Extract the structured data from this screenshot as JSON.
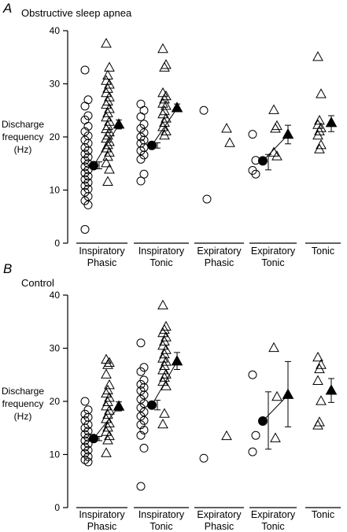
{
  "chart_data": [
    {
      "type": "scatter",
      "panel_letter": "A",
      "title": "Obstructive sleep apnea",
      "ylabel_lines": [
        "Discharge",
        "frequency",
        "(Hz)"
      ],
      "ylim": [
        0,
        40
      ],
      "yticks": [
        0,
        10,
        20,
        30,
        40
      ],
      "categories": [
        {
          "lines": [
            "Inspiratory",
            "Phasic"
          ]
        },
        {
          "lines": [
            "Inspiratory",
            "Tonic"
          ]
        },
        {
          "lines": [
            "Expiratory",
            "Phasic"
          ]
        },
        {
          "lines": [
            "Expiratory",
            "Tonic"
          ]
        },
        {
          "lines": [
            "Tonic"
          ]
        }
      ],
      "groups": [
        {
          "category": 0,
          "circles": [
            32.6,
            27.0,
            25.8,
            24.0,
            23.2,
            22.0,
            21.0,
            20.2,
            19.4,
            18.8,
            18.0,
            17.4,
            16.8,
            16.2,
            15.6,
            15.0,
            14.4,
            13.8,
            13.2,
            12.6,
            12.0,
            11.4,
            10.8,
            10.2,
            9.6,
            8.8,
            8.0,
            7.2,
            2.6
          ],
          "triangles": [
            37.5,
            33.0,
            31.5,
            30.5,
            29.8,
            29.0,
            28.2,
            27.4,
            26.6,
            26.0,
            25.2,
            24.4,
            23.6,
            22.8,
            22.0,
            21.4,
            20.8,
            20.2,
            19.6,
            19.0,
            18.4,
            17.8,
            17.0,
            16.2,
            15.0,
            13.8,
            11.5
          ],
          "circle_mean": 14.6,
          "circle_err": [
            14.0,
            15.3
          ],
          "tri_mean": 22.3,
          "tri_err": [
            21.5,
            23.2
          ]
        },
        {
          "category": 1,
          "circles": [
            26.2,
            25.0,
            23.8,
            22.4,
            21.6,
            20.8,
            20.0,
            19.4,
            18.8,
            18.0,
            17.4,
            16.6,
            15.8,
            13.0,
            11.7
          ],
          "triangles": [
            36.5,
            33.5,
            33.0,
            28.2,
            27.6,
            27.0,
            26.2,
            25.8,
            24.8,
            24.2,
            23.4,
            22.6,
            21.8,
            21.0,
            20.2
          ],
          "circle_mean": 18.4,
          "circle_err": [
            17.9,
            18.9
          ],
          "tri_mean": 25.4,
          "tri_err": [
            24.8,
            26.2
          ]
        },
        {
          "category": 2,
          "circles": [
            25.0,
            8.3
          ],
          "triangles": [
            21.5,
            18.8
          ],
          "circle_mean": null,
          "circle_err": null,
          "tri_mean": null,
          "tri_err": null
        },
        {
          "category": 3,
          "circles": [
            20.5,
            15.6,
            13.7,
            13.0
          ],
          "triangles": [
            25.0,
            22.0,
            21.5,
            17.0,
            16.3
          ],
          "circle_mean": 15.5,
          "circle_err": [
            13.8,
            16.7
          ],
          "tri_mean": 20.4,
          "tri_err": [
            18.7,
            22.2
          ]
        },
        {
          "category": 4,
          "circles": [],
          "triangles": [
            35.0,
            28.0,
            23.0,
            22.2,
            21.6,
            21.0,
            20.2,
            18.4,
            17.6
          ],
          "circle_mean": null,
          "circle_err": null,
          "tri_mean": 22.6,
          "tri_err": [
            21.0,
            24.0
          ]
        }
      ]
    },
    {
      "type": "scatter",
      "panel_letter": "B",
      "title": "Control",
      "ylabel_lines": [
        "Discharge",
        "frequency",
        "(Hz)"
      ],
      "ylim": [
        0,
        40
      ],
      "yticks": [
        0,
        10,
        20,
        30,
        40
      ],
      "categories": [
        {
          "lines": [
            "Inspiratory",
            "Phasic"
          ]
        },
        {
          "lines": [
            "Inspiratory",
            "Tonic"
          ]
        },
        {
          "lines": [
            "Expiratory",
            "Phasic"
          ]
        },
        {
          "lines": [
            "Expiratory",
            "Tonic"
          ]
        },
        {
          "lines": [
            "Tonic"
          ]
        }
      ],
      "groups": [
        {
          "category": 0,
          "circles": [
            20.0,
            18.4,
            17.6,
            17.0,
            16.4,
            15.6,
            15.0,
            14.4,
            13.8,
            13.2,
            12.6,
            12.0,
            11.4,
            10.8,
            10.2,
            9.6,
            9.0,
            8.6
          ],
          "triangles": [
            27.8,
            27.2,
            26.8,
            25.0,
            23.0,
            22.0,
            21.4,
            20.6,
            19.8,
            19.0,
            18.2,
            17.4,
            16.6,
            15.8,
            15.0,
            14.2,
            13.4,
            12.6,
            10.2
          ],
          "circle_mean": 13.0,
          "circle_err": [
            12.6,
            13.4
          ],
          "tri_mean": 19.0,
          "tri_err": [
            18.2,
            19.9
          ]
        },
        {
          "category": 1,
          "circles": [
            31.0,
            26.4,
            25.6,
            24.0,
            23.2,
            22.6,
            22.0,
            21.2,
            20.4,
            19.6,
            18.8,
            18.0,
            17.2,
            16.4,
            15.6,
            14.6,
            13.6,
            11.2,
            4.0
          ],
          "triangles": [
            38.0,
            34.0,
            33.4,
            32.8,
            32.0,
            31.2,
            30.4,
            29.6,
            28.8,
            28.0,
            27.4,
            26.6,
            25.8,
            25.0,
            24.4,
            23.6,
            22.8,
            17.6,
            15.6
          ],
          "circle_mean": 19.3,
          "circle_err": [
            18.4,
            20.2
          ],
          "tri_mean": 27.5,
          "tri_err": [
            26.0,
            29.2
          ]
        },
        {
          "category": 2,
          "circles": [
            9.3
          ],
          "triangles": [
            13.4
          ],
          "circle_mean": null,
          "circle_err": null,
          "tri_mean": null,
          "tri_err": null
        },
        {
          "category": 3,
          "circles": [
            25.0,
            13.6,
            10.5
          ],
          "triangles": [
            30.0,
            20.8,
            13.0
          ],
          "circle_mean": 16.3,
          "circle_err": [
            11.0,
            21.8
          ],
          "tri_mean": 21.2,
          "tri_err": [
            15.2,
            27.5
          ]
        },
        {
          "category": 4,
          "circles": [],
          "triangles": [
            28.2,
            26.8,
            26.0,
            23.8,
            20.0,
            16.0,
            15.4
          ],
          "circle_mean": null,
          "circle_err": null,
          "tri_mean": 22.0,
          "tri_err": [
            19.8,
            24.3
          ]
        }
      ]
    }
  ]
}
